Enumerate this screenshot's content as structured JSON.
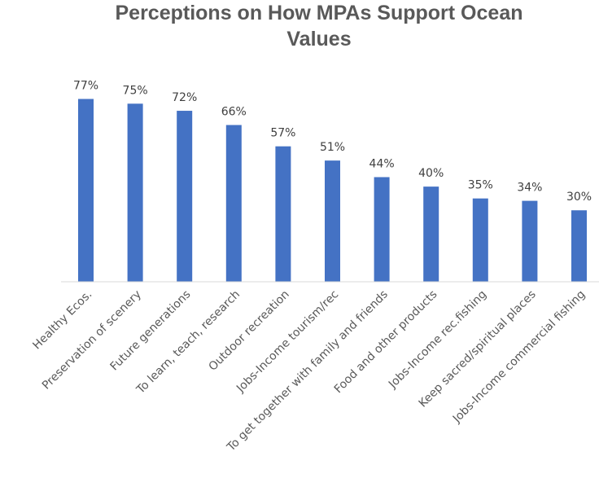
{
  "chart_data": {
    "type": "bar",
    "title_lines": [
      "Perceptions on How MPAs Support Ocean",
      "Values"
    ],
    "categories": [
      "Healthy Ecos.",
      "Preservation of scenery",
      "Future generations",
      "To learn, teach, research",
      "Outdoor recreation",
      "Jobs-Income tourism/rec",
      "To get together with family and friends",
      "Food and other products",
      "Jobs-Income rec.fishing",
      "Keep sacred/spiritual places",
      "Jobs-Income commercial fishing"
    ],
    "values": [
      77,
      75,
      72,
      66,
      57,
      51,
      44,
      40,
      35,
      34,
      30
    ],
    "data_labels": [
      "77%",
      "75%",
      "72%",
      "66%",
      "57%",
      "51%",
      "44%",
      "40%",
      "35%",
      "34%",
      "30%"
    ],
    "unit": "%",
    "ylim": [
      0,
      77
    ],
    "grid": false,
    "bar_color": "#4472C4"
  }
}
